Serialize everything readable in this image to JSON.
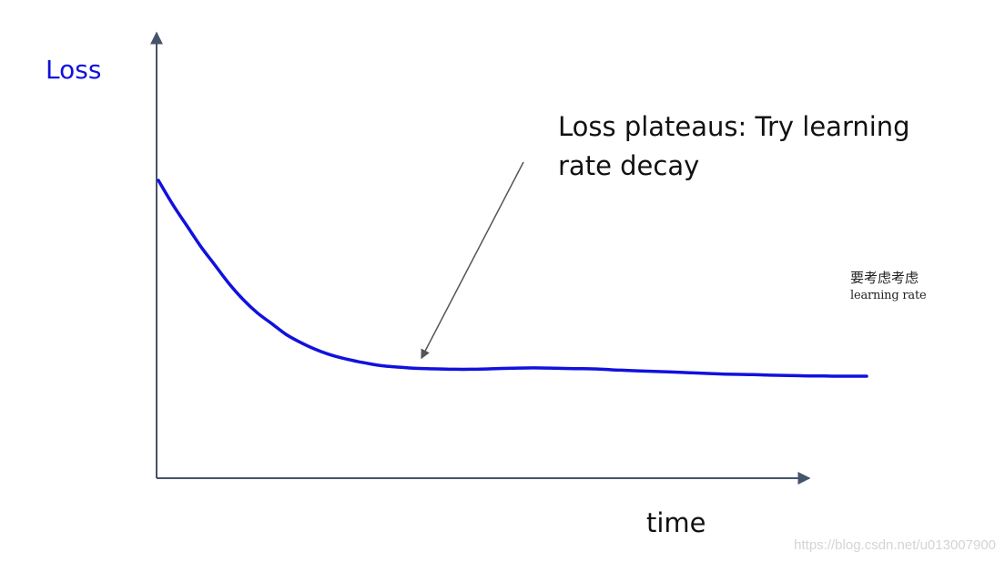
{
  "chart_data": {
    "type": "line",
    "ylabel": "Loss",
    "xlabel": "time",
    "series": [
      {
        "x": [
          0,
          2,
          4,
          6,
          8,
          10,
          12,
          14,
          16,
          18,
          20,
          22,
          24,
          26,
          28,
          30,
          32,
          34,
          36,
          38,
          40,
          42,
          44,
          46,
          48,
          50,
          52,
          54,
          56,
          58,
          60,
          62,
          64,
          66,
          68,
          70,
          72,
          74,
          76,
          78,
          80,
          82,
          84,
          86,
          88,
          90,
          92,
          94,
          96,
          98,
          100
        ],
        "y": [
          100,
          91,
          83,
          75,
          68,
          61,
          55,
          50,
          46,
          42,
          39,
          36.5,
          34.5,
          33,
          31.8,
          30.8,
          30,
          29.6,
          29.2,
          29,
          28.9,
          28.8,
          28.8,
          28.9,
          29.1,
          29.2,
          29.3,
          29.3,
          29.2,
          29.1,
          29,
          28.9,
          28.6,
          28.4,
          28.2,
          28,
          27.8,
          27.6,
          27.4,
          27.2,
          27,
          26.9,
          26.8,
          26.6,
          26.5,
          26.4,
          26.3,
          26.3,
          26.2,
          26.2,
          26.2
        ],
        "color": "#1111dd"
      }
    ],
    "annotation": {
      "line1": "Loss plateaus: Try learning",
      "line2": "rate decay",
      "arrow_target_x": 37
    },
    "side_note": {
      "zh": "要考虑考虑",
      "en": "learning rate"
    }
  },
  "colors": {
    "axis": "#44546a",
    "curve": "#1111dd",
    "arrow": "#555555"
  },
  "watermark": "https://blog.csdn.net/u013007900"
}
